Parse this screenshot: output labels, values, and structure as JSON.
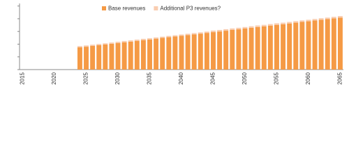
{
  "chart_data": {
    "type": "bar",
    "stacked": true,
    "categories": [
      "2015",
      null,
      null,
      null,
      null,
      "2020",
      null,
      null,
      null,
      null,
      "2025",
      null,
      null,
      null,
      null,
      "2030",
      null,
      null,
      null,
      null,
      "2035",
      null,
      null,
      null,
      null,
      "2040",
      null,
      null,
      null,
      null,
      "2045",
      null,
      null,
      null,
      null,
      "2050",
      null,
      null,
      null,
      null,
      "2055",
      null,
      null,
      null,
      null,
      "2060",
      null,
      null,
      null,
      null,
      "2065"
    ],
    "series": [
      {
        "name": "Base revenues",
        "color": "#f59a45",
        "values": [
          null,
          null,
          null,
          null,
          null,
          null,
          null,
          null,
          null,
          1.75,
          1.8,
          1.86,
          1.92,
          1.97,
          2.03,
          2.09,
          2.15,
          2.2,
          2.26,
          2.32,
          2.37,
          2.43,
          2.49,
          2.55,
          2.6,
          2.66,
          2.72,
          2.77,
          2.83,
          2.89,
          2.95,
          3.0,
          3.06,
          3.12,
          3.17,
          3.23,
          3.29,
          3.35,
          3.4,
          3.46,
          3.52,
          3.57,
          3.63,
          3.69,
          3.75,
          3.8,
          3.86,
          3.92,
          3.97,
          4.03,
          4.09
        ]
      },
      {
        "name": "Additional P3 revenues?",
        "color": "#f9cdb0",
        "values": [
          null,
          null,
          null,
          null,
          null,
          null,
          null,
          null,
          null,
          0.1,
          0.1,
          0.1,
          0.1,
          0.1,
          0.1,
          0.1,
          0.1,
          0.1,
          0.1,
          0.1,
          0.1,
          0.1,
          0.1,
          0.1,
          0.1,
          0.1,
          0.1,
          0.1,
          0.1,
          0.1,
          0.12,
          0.12,
          0.12,
          0.12,
          0.12,
          0.12,
          0.12,
          0.12,
          0.12,
          0.12,
          0.12,
          0.12,
          0.12,
          0.12,
          0.12,
          0.12,
          0.12,
          0.12,
          0.12,
          0.12,
          0.12
        ]
      }
    ],
    "ylim": [
      0,
      5.2
    ],
    "yticks": [
      0,
      1,
      2,
      3,
      4,
      5
    ]
  }
}
